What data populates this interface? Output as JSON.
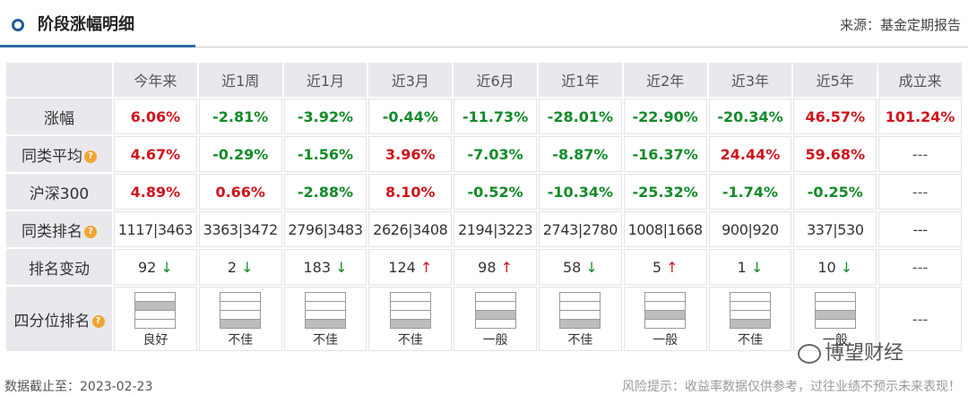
{
  "header": {
    "title": "阶段涨幅明细",
    "source": "来源：基金定期报告"
  },
  "periods": [
    "今年来",
    "近1周",
    "近1月",
    "近3月",
    "近6月",
    "近1年",
    "近2年",
    "近3年",
    "近5年",
    "成立来"
  ],
  "rows": {
    "gain": {
      "label": "涨幅",
      "values": [
        "6.06%",
        "-2.81%",
        "-3.92%",
        "-0.44%",
        "-11.73%",
        "-28.01%",
        "-22.90%",
        "-20.34%",
        "46.57%",
        "101.24%"
      ],
      "colors": [
        "red",
        "green",
        "green",
        "green",
        "green",
        "green",
        "green",
        "green",
        "red",
        "red"
      ]
    },
    "peer": {
      "label": "同类平均",
      "values": [
        "4.67%",
        "-0.29%",
        "-1.56%",
        "3.96%",
        "-7.03%",
        "-8.87%",
        "-16.37%",
        "24.44%",
        "59.68%",
        "---"
      ],
      "colors": [
        "red",
        "green",
        "green",
        "red",
        "green",
        "green",
        "green",
        "red",
        "red",
        "dash"
      ]
    },
    "hs300": {
      "label": "沪深300",
      "values": [
        "4.89%",
        "0.66%",
        "-2.88%",
        "8.10%",
        "-0.52%",
        "-10.34%",
        "-25.32%",
        "-1.74%",
        "-0.25%",
        "---"
      ],
      "colors": [
        "red",
        "red",
        "green",
        "red",
        "green",
        "green",
        "green",
        "green",
        "green",
        "dash"
      ]
    },
    "rank": {
      "label": "同类排名",
      "values": [
        "1117|3463",
        "3363|3472",
        "2796|3483",
        "2626|3408",
        "2194|3223",
        "2743|2780",
        "1008|1668",
        "900|920",
        "337|530",
        "---"
      ]
    },
    "change": {
      "label": "排名变动",
      "values": [
        "92",
        "2",
        "183",
        "124",
        "98",
        "58",
        "5",
        "1",
        "10",
        "---"
      ],
      "dirs": [
        "down",
        "down",
        "down",
        "up",
        "up",
        "down",
        "up",
        "down",
        "down",
        ""
      ]
    },
    "quartile": {
      "label": "四分位排名",
      "values": [
        "良好",
        "不佳",
        "不佳",
        "不佳",
        "一般",
        "不佳",
        "一般",
        "不佳",
        "一般",
        "---"
      ],
      "level": [
        2,
        4,
        4,
        4,
        3,
        4,
        3,
        4,
        3,
        0
      ]
    }
  },
  "arrows": {
    "up": "↑",
    "down": "↓"
  },
  "help_icon": "?",
  "footer": {
    "date": "数据截止至：2023-02-23",
    "risk": "风险提示：收益率数据仅供参考，过往业绩不预示未来表现！"
  },
  "watermark": "博望财经"
}
